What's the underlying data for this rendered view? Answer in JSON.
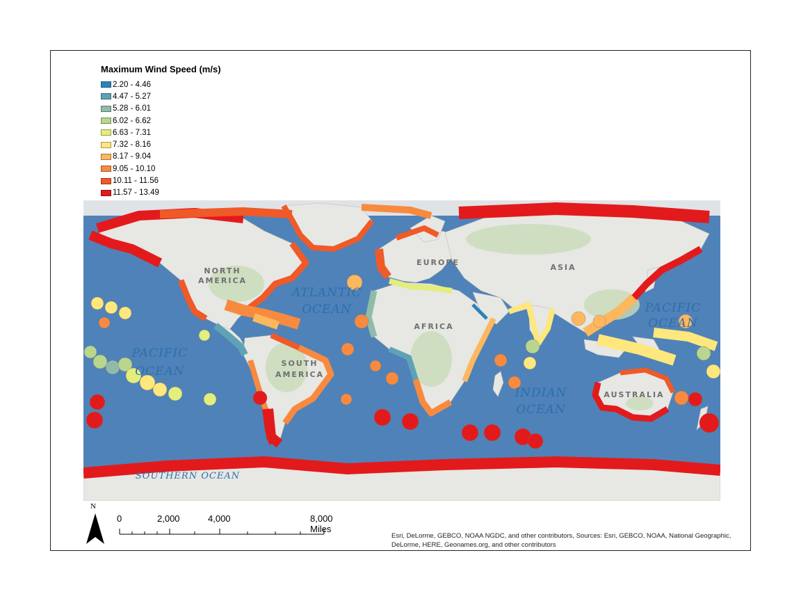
{
  "legend": {
    "title": "Maximum Wind Speed (m/s)",
    "classes": [
      {
        "label": "2.20 - 4.46",
        "color": "#2b83ba"
      },
      {
        "label": "4.47 - 5.27",
        "color": "#5fa2b6"
      },
      {
        "label": "5.28 - 6.01",
        "color": "#8fbca8"
      },
      {
        "label": "6.02 - 6.62",
        "color": "#b8d68e"
      },
      {
        "label": "6.63 - 7.31",
        "color": "#e3ee7c"
      },
      {
        "label": "7.32 - 8.16",
        "color": "#fee77c"
      },
      {
        "label": "8.17 - 9.04",
        "color": "#fdb75d"
      },
      {
        "label": "9.05 - 10.10",
        "color": "#f88a3f"
      },
      {
        "label": "10.11 - 11.56",
        "color": "#ef5a28"
      },
      {
        "label": "11.57 - 13.49",
        "color": "#e31a1c"
      }
    ]
  },
  "map_labels": {
    "north_america": "NORTH\nAMERICA",
    "south_america": "SOUTH\nAMERICA",
    "europe": "EUROPE",
    "africa": "AFRICA",
    "asia": "ASIA",
    "australia": "AUSTRALIA",
    "atlantic_ocean": "ATLANTIC\nOCEAN",
    "pacific_ocean_west": "PACIFIC\nOCEAN",
    "pacific_ocean_east": "PACIFIC\nOCEAN",
    "indian_ocean": "INDIAN\nOCEAN",
    "southern_ocean": "SOUTHERN OCEAN"
  },
  "north_arrow": {
    "label": "N"
  },
  "scale_bar": {
    "ticks": [
      "0",
      "2,000",
      "4,000",
      "8,000 Miles"
    ]
  },
  "attribution": "Esri, DeLorme, GEBCO, NOAA NGDC, and other contributors, Sources: Esri, GEBCO, NOAA, National Geographic, DeLorme, HERE, Geonames.org, and other contributors",
  "colors": {
    "ocean": "#4f82b8",
    "land": "#e7e7e3",
    "vegetation": "#c9dcb8"
  }
}
